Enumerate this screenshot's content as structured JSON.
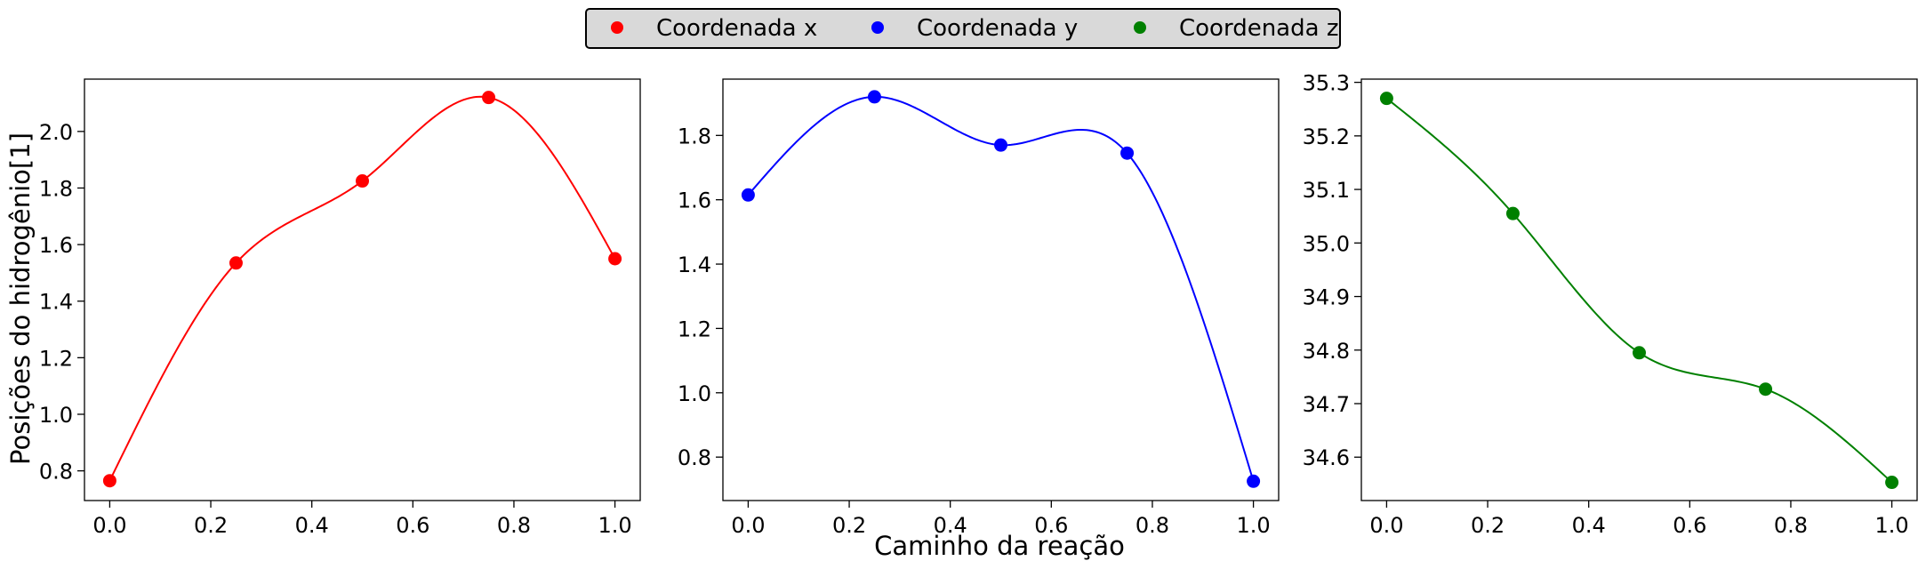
{
  "figure": {
    "ylabel": "Posições do hidrogênio[1]",
    "xlabel": "Caminho da reação"
  },
  "legend": {
    "placement": "top-center",
    "entries": [
      {
        "label": "Coordenada x",
        "color": "#ff0000"
      },
      {
        "label": "Coordenada y",
        "color": "#0000ff"
      },
      {
        "label": "Coordenada z",
        "color": "#008000"
      }
    ]
  },
  "chart_data": [
    {
      "type": "line",
      "series": [
        {
          "name": "Coordenada x",
          "color": "#ff0000",
          "x": [
            0.0,
            0.25,
            0.5,
            0.75,
            1.0
          ],
          "y": [
            0.765,
            1.535,
            1.825,
            2.12,
            1.55
          ]
        }
      ],
      "xlim": [
        -0.05,
        1.05
      ],
      "ylim": [
        0.695,
        2.185
      ],
      "xticks": [
        0.0,
        0.2,
        0.4,
        0.6,
        0.8,
        1.0
      ],
      "yticks": [
        0.8,
        1.0,
        1.2,
        1.4,
        1.6,
        1.8,
        2.0
      ],
      "xticklabels": [
        "0.0",
        "0.2",
        "0.4",
        "0.6",
        "0.8",
        "1.0"
      ],
      "yticklabels": [
        "0.8",
        "1.0",
        "1.2",
        "1.4",
        "1.6",
        "1.8",
        "2.0"
      ],
      "ylabel": "Posições do hidrogênio[1]",
      "grid": false
    },
    {
      "type": "line",
      "series": [
        {
          "name": "Coordenada y",
          "color": "#0000ff",
          "x": [
            0.0,
            0.25,
            0.5,
            0.75,
            1.0
          ],
          "y": [
            1.615,
            1.92,
            1.77,
            1.745,
            0.725
          ]
        }
      ],
      "xlim": [
        -0.05,
        1.05
      ],
      "ylim": [
        0.665,
        1.975
      ],
      "xticks": [
        0.0,
        0.2,
        0.4,
        0.6,
        0.8,
        1.0
      ],
      "yticks": [
        0.8,
        1.0,
        1.2,
        1.4,
        1.6,
        1.8
      ],
      "xticklabels": [
        "0.0",
        "0.2",
        "0.4",
        "0.6",
        "0.8",
        "1.0"
      ],
      "yticklabels": [
        "0.8",
        "1.0",
        "1.2",
        "1.4",
        "1.6",
        "1.8"
      ],
      "xlabel": "Caminho da reação",
      "grid": false
    },
    {
      "type": "line",
      "series": [
        {
          "name": "Coordenada z",
          "color": "#008000",
          "x": [
            0.0,
            0.25,
            0.5,
            0.75,
            1.0
          ],
          "y": [
            35.27,
            35.055,
            34.795,
            34.727,
            34.553
          ]
        }
      ],
      "xlim": [
        -0.05,
        1.05
      ],
      "ylim": [
        34.519,
        35.306
      ],
      "xticks": [
        0.0,
        0.2,
        0.4,
        0.6,
        0.8,
        1.0
      ],
      "yticks": [
        34.6,
        34.7,
        34.8,
        34.9,
        35.0,
        35.1,
        35.2,
        35.3
      ],
      "xticklabels": [
        "0.0",
        "0.2",
        "0.4",
        "0.6",
        "0.8",
        "1.0"
      ],
      "yticklabels": [
        "34.6",
        "34.7",
        "34.8",
        "34.9",
        "35.0",
        "35.1",
        "35.2",
        "35.3"
      ],
      "grid": false
    }
  ]
}
